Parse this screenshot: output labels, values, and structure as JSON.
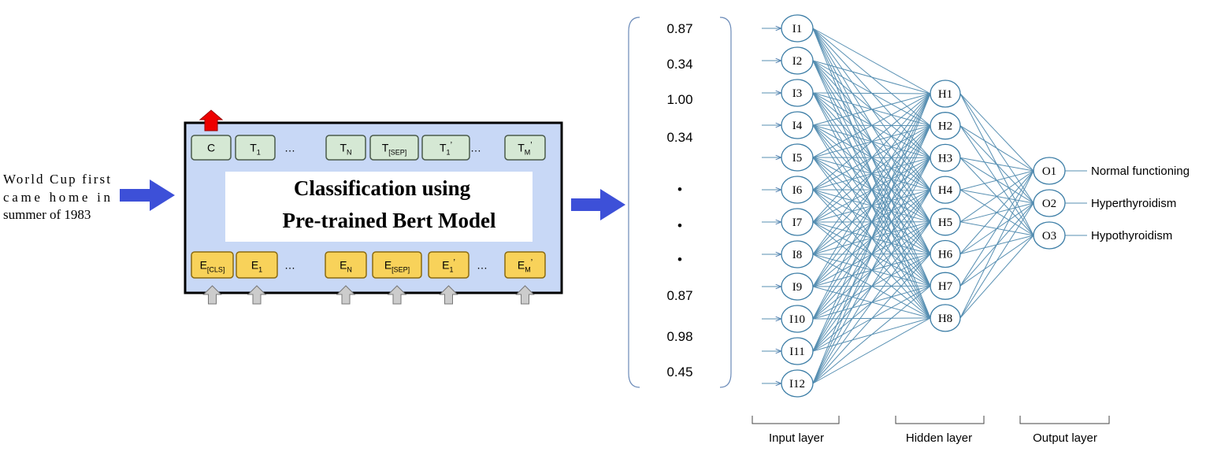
{
  "input_text": [
    "World Cup first",
    "came home in",
    "summer of 1983"
  ],
  "bert": {
    "title": [
      "Classification using",
      "Pre-trained Bert Model"
    ],
    "output_tokens": [
      {
        "main": "C"
      },
      {
        "main": "T",
        "sub": "1"
      },
      {
        "main": "…"
      },
      {
        "main": "T",
        "sub": "N"
      },
      {
        "main": "T",
        "sub": "[SEP]"
      },
      {
        "main": "T",
        "sub": "1",
        "sup": "’"
      },
      {
        "main": "…"
      },
      {
        "main": "T",
        "sub": "M",
        "sup": "’"
      }
    ],
    "input_embeddings": [
      {
        "main": "E",
        "sub": "[CLS]"
      },
      {
        "main": "E",
        "sub": "1"
      },
      {
        "main": "…"
      },
      {
        "main": "E",
        "sub": "N"
      },
      {
        "main": "E",
        "sub": "[SEP]"
      },
      {
        "main": "E",
        "sub": "1",
        "sup": "’"
      },
      {
        "main": "…"
      },
      {
        "main": "E",
        "sub": "M",
        "sup": "’"
      }
    ]
  },
  "vector": [
    "0.87",
    "0.34",
    "1.00",
    "0.34",
    "•",
    "•",
    "•",
    "0.87",
    "0.98",
    "0.45"
  ],
  "network": {
    "input_nodes": [
      "I1",
      "I2",
      "I3",
      "I4",
      "I5",
      "I6",
      "I7",
      "I8",
      "I9",
      "I10",
      "I11",
      "I12"
    ],
    "hidden_nodes": [
      "H1",
      "H2",
      "H3",
      "H4",
      "H5",
      "H6",
      "H7",
      "H8"
    ],
    "output_nodes": [
      "O1",
      "O2",
      "O3"
    ],
    "output_labels": [
      "Normal functioning",
      "Hyperthyroidism",
      "Hypothyroidism"
    ],
    "layer_labels": [
      "Input layer",
      "Hidden layer",
      "Output layer"
    ]
  }
}
